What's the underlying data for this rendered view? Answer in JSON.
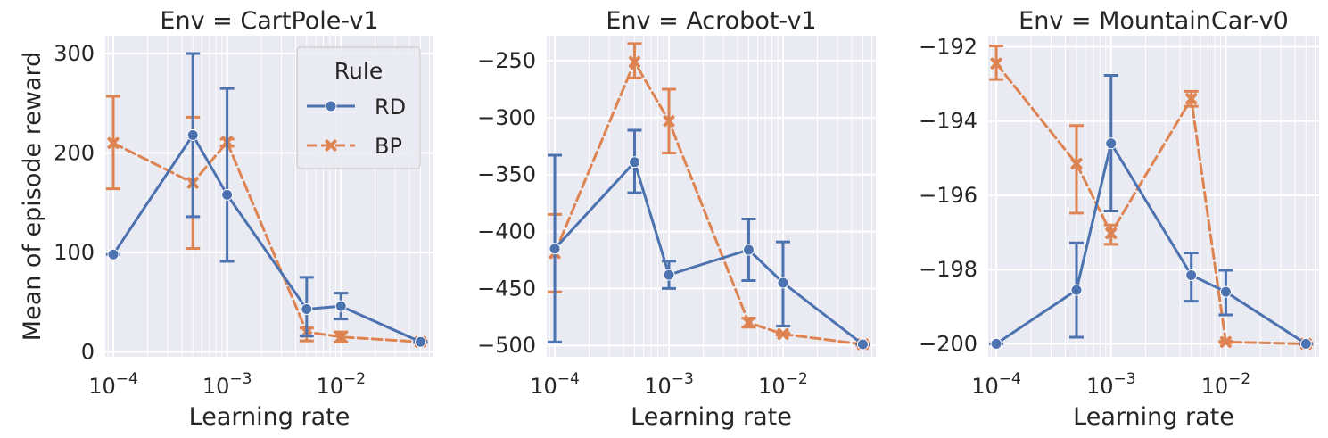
{
  "chart_data": [
    {
      "type": "line",
      "title": "Env = CartPole-v1",
      "xlabel": "Learning rate",
      "ylabel": "Mean of episode reward",
      "xscale": "log",
      "xlim": [
        8.5e-05,
        0.065
      ],
      "ylim": [
        -5,
        318
      ],
      "xticks": [
        {
          "value": 0.0001,
          "mant": "10",
          "exp": "−4"
        },
        {
          "value": 0.001,
          "mant": "10",
          "exp": "−3"
        },
        {
          "value": 0.01,
          "mant": "10",
          "exp": "−2"
        }
      ],
      "yticks": [
        {
          "value": 0,
          "label": "0"
        },
        {
          "value": 100,
          "label": "100"
        },
        {
          "value": 200,
          "label": "200"
        },
        {
          "value": 300,
          "label": "300"
        }
      ],
      "grid": true,
      "legend": {
        "title": "Rule",
        "location": "top-right"
      },
      "series": [
        {
          "name": "RD",
          "color": "#4c72b0",
          "style": "solid",
          "marker": "circle",
          "x": [
            0.0001,
            0.0005,
            0.001,
            0.005,
            0.01,
            0.05
          ],
          "y": [
            98,
            218,
            158,
            43,
            46,
            10
          ],
          "err_low": [
            98,
            136,
            91,
            16,
            33,
            10
          ],
          "err_high": [
            98,
            300,
            265,
            75,
            59,
            10
          ]
        },
        {
          "name": "BP",
          "color": "#dd8452",
          "style": "dashed",
          "marker": "x",
          "x": [
            0.0001,
            0.0005,
            0.001,
            0.005,
            0.01,
            0.05
          ],
          "y": [
            210,
            170,
            211,
            20,
            15,
            10
          ],
          "err_low": [
            164,
            104,
            207,
            11,
            10,
            9
          ],
          "err_high": [
            257,
            236,
            214,
            24,
            20,
            11
          ]
        }
      ]
    },
    {
      "type": "line",
      "title": "Env = Acrobot-v1",
      "xlabel": "Learning rate",
      "ylabel": "",
      "xscale": "log",
      "xlim": [
        8.5e-05,
        0.065
      ],
      "ylim": [
        -510,
        -228
      ],
      "xticks": [
        {
          "value": 0.0001,
          "mant": "10",
          "exp": "−4"
        },
        {
          "value": 0.001,
          "mant": "10",
          "exp": "−3"
        },
        {
          "value": 0.01,
          "mant": "10",
          "exp": "−2"
        }
      ],
      "yticks": [
        {
          "value": -500,
          "label": "−500"
        },
        {
          "value": -450,
          "label": "−450"
        },
        {
          "value": -400,
          "label": "−400"
        },
        {
          "value": -350,
          "label": "−350"
        },
        {
          "value": -300,
          "label": "−300"
        },
        {
          "value": -250,
          "label": "−250"
        }
      ],
      "grid": true,
      "series": [
        {
          "name": "RD",
          "color": "#4c72b0",
          "style": "solid",
          "marker": "circle",
          "x": [
            0.0001,
            0.0005,
            0.001,
            0.005,
            0.01,
            0.05
          ],
          "y": [
            -415,
            -339,
            -438,
            -416,
            -445,
            -499
          ],
          "err_low": [
            -497,
            -366,
            -450,
            -443,
            -483,
            -499
          ],
          "err_high": [
            -333,
            -311,
            -426,
            -389,
            -409,
            -499
          ]
        },
        {
          "name": "BP",
          "color": "#dd8452",
          "style": "dashed",
          "marker": "x",
          "x": [
            0.0001,
            0.0005,
            0.001,
            0.005,
            0.01,
            0.05
          ],
          "y": [
            -419,
            -251,
            -303,
            -480,
            -490,
            -499
          ],
          "err_low": [
            -453,
            -265,
            -331,
            -484,
            -491,
            -500
          ],
          "err_high": [
            -385,
            -235,
            -275,
            -476,
            -489,
            -498
          ]
        }
      ]
    },
    {
      "type": "line",
      "title": "Env = MountainCar-v0",
      "xlabel": "Learning rate",
      "ylabel": "",
      "xscale": "log",
      "xlim": [
        8.5e-05,
        0.065
      ],
      "ylim": [
        -200.35,
        -191.7
      ],
      "xticks": [
        {
          "value": 0.0001,
          "mant": "10",
          "exp": "−4"
        },
        {
          "value": 0.001,
          "mant": "10",
          "exp": "−3"
        },
        {
          "value": 0.01,
          "mant": "10",
          "exp": "−2"
        }
      ],
      "yticks": [
        {
          "value": -200,
          "label": "−200"
        },
        {
          "value": -198,
          "label": "−198"
        },
        {
          "value": -196,
          "label": "−196"
        },
        {
          "value": -194,
          "label": "−194"
        },
        {
          "value": -192,
          "label": "−192"
        }
      ],
      "grid": true,
      "series": [
        {
          "name": "RD",
          "color": "#4c72b0",
          "style": "solid",
          "marker": "circle",
          "x": [
            0.0001,
            0.0005,
            0.001,
            0.005,
            0.01,
            0.05
          ],
          "y": [
            -200,
            -198.55,
            -194.6,
            -198.15,
            -198.6,
            -200
          ],
          "err_low": [
            -200,
            -199.82,
            -196.42,
            -198.85,
            -199.22,
            -200
          ],
          "err_high": [
            -200,
            -197.28,
            -192.77,
            -197.55,
            -198.02,
            -200
          ]
        },
        {
          "name": "BP",
          "color": "#dd8452",
          "style": "dashed",
          "marker": "x",
          "x": [
            0.0001,
            0.0005,
            0.001,
            0.005,
            0.01,
            0.05
          ],
          "y": [
            -192.45,
            -195.15,
            -197.02,
            -193.4,
            -199.95,
            -200
          ],
          "err_low": [
            -192.88,
            -196.48,
            -197.32,
            -193.6,
            -199.97,
            -200.02
          ],
          "err_high": [
            -191.98,
            -194.12,
            -196.8,
            -193.2,
            -199.93,
            -199.98
          ]
        }
      ]
    }
  ]
}
